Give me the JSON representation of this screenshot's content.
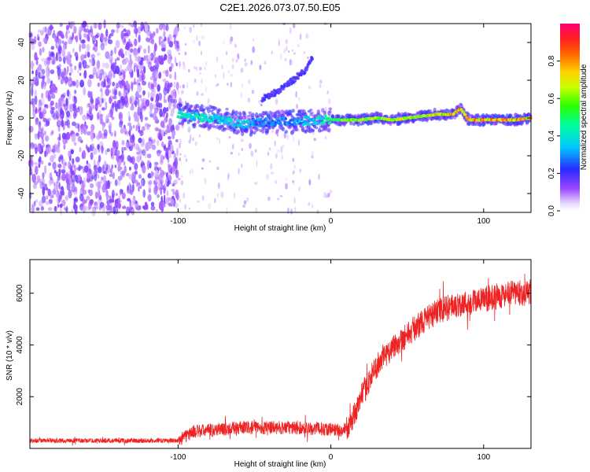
{
  "title": "C2E1.2026.073.07.50.E05",
  "chart_data": [
    {
      "type": "heatmap",
      "name": "spectrogram",
      "xlabel": "Height of straight line (km)",
      "ylabel": "Frequency (Hz)",
      "xlim": [
        -197,
        131
      ],
      "ylim": [
        -50,
        50
      ],
      "xticks": [
        -100,
        0,
        100
      ],
      "yticks": [
        -40,
        -20,
        0,
        20,
        40
      ],
      "colorbar": {
        "label": "Normalized spectral amplitude",
        "range": [
          0,
          1
        ],
        "ticks": [
          0.0,
          0.2,
          0.4,
          0.6,
          0.8
        ]
      },
      "noise_region_x": [
        -197,
        -100
      ],
      "sparse_region_x": [
        -100,
        0
      ],
      "carrier_track": [
        {
          "x": -100,
          "y": 2,
          "amp": 0.45
        },
        {
          "x": -90,
          "y": 1,
          "amp": 0.45
        },
        {
          "x": -80,
          "y": 0,
          "amp": 0.45
        },
        {
          "x": -70,
          "y": -1,
          "amp": 0.4
        },
        {
          "x": -60,
          "y": -3,
          "amp": 0.4
        },
        {
          "x": -50,
          "y": -3,
          "amp": 0.35
        },
        {
          "x": -40,
          "y": -2,
          "amp": 0.3
        },
        {
          "x": -30,
          "y": -2,
          "amp": 0.35
        },
        {
          "x": -20,
          "y": -2,
          "amp": 0.35
        },
        {
          "x": -10,
          "y": -1,
          "amp": 0.4
        },
        {
          "x": 0,
          "y": -1,
          "amp": 0.55
        },
        {
          "x": 10,
          "y": -1,
          "amp": 0.65
        },
        {
          "x": 20,
          "y": -1,
          "amp": 0.7
        },
        {
          "x": 30,
          "y": 0,
          "amp": 0.7
        },
        {
          "x": 40,
          "y": -1,
          "amp": 0.7
        },
        {
          "x": 50,
          "y": 0,
          "amp": 0.72
        },
        {
          "x": 60,
          "y": 1,
          "amp": 0.75
        },
        {
          "x": 70,
          "y": 2,
          "amp": 0.78
        },
        {
          "x": 80,
          "y": 2,
          "amp": 0.85
        },
        {
          "x": 85,
          "y": 5,
          "amp": 0.85
        },
        {
          "x": 90,
          "y": -1,
          "amp": 0.85
        },
        {
          "x": 100,
          "y": -1,
          "amp": 0.85
        },
        {
          "x": 110,
          "y": -1,
          "amp": 0.85
        },
        {
          "x": 120,
          "y": -1,
          "amp": 0.85
        },
        {
          "x": 131,
          "y": 0,
          "amp": 0.82
        }
      ],
      "chirp_track": [
        {
          "x": -45,
          "y": 10
        },
        {
          "x": -35,
          "y": 14
        },
        {
          "x": -25,
          "y": 20
        },
        {
          "x": -17,
          "y": 25
        },
        {
          "x": -12,
          "y": 32
        }
      ]
    },
    {
      "type": "line",
      "name": "snr",
      "xlabel": "Height of straight line (km)",
      "ylabel": "SNR (10 * v/v)",
      "xlim": [
        -197,
        131
      ],
      "ylim": [
        0,
        7300
      ],
      "xticks": [
        -100,
        0,
        100
      ],
      "yticks": [
        2000,
        4000,
        6000
      ],
      "color": "#ee2222",
      "trend": [
        {
          "x": -197,
          "y": 300
        },
        {
          "x": -100,
          "y": 300
        },
        {
          "x": -90,
          "y": 650
        },
        {
          "x": -60,
          "y": 800
        },
        {
          "x": -30,
          "y": 800
        },
        {
          "x": 0,
          "y": 750
        },
        {
          "x": 8,
          "y": 700
        },
        {
          "x": 12,
          "y": 800
        },
        {
          "x": 20,
          "y": 2000
        },
        {
          "x": 30,
          "y": 3200
        },
        {
          "x": 40,
          "y": 3900
        },
        {
          "x": 50,
          "y": 4400
        },
        {
          "x": 60,
          "y": 4900
        },
        {
          "x": 70,
          "y": 5300
        },
        {
          "x": 80,
          "y": 5500
        },
        {
          "x": 90,
          "y": 5650
        },
        {
          "x": 100,
          "y": 5750
        },
        {
          "x": 110,
          "y": 5900
        },
        {
          "x": 120,
          "y": 6000
        },
        {
          "x": 131,
          "y": 6000
        }
      ]
    }
  ]
}
